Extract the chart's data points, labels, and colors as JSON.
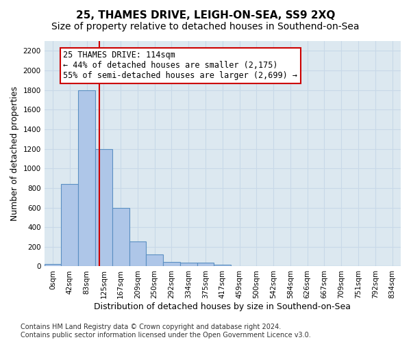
{
  "title": "25, THAMES DRIVE, LEIGH-ON-SEA, SS9 2XQ",
  "subtitle": "Size of property relative to detached houses in Southend-on-Sea",
  "xlabel": "Distribution of detached houses by size in Southend-on-Sea",
  "ylabel": "Number of detached properties",
  "bar_values": [
    25,
    840,
    1800,
    1200,
    595,
    255,
    120,
    42,
    40,
    35,
    18,
    0,
    0,
    0,
    0,
    0,
    0,
    0,
    0,
    0,
    0
  ],
  "bar_labels": [
    "0sqm",
    "42sqm",
    "83sqm",
    "125sqm",
    "167sqm",
    "209sqm",
    "250sqm",
    "292sqm",
    "334sqm",
    "375sqm",
    "417sqm",
    "459sqm",
    "500sqm",
    "542sqm",
    "584sqm",
    "626sqm",
    "667sqm",
    "709sqm",
    "751sqm",
    "792sqm",
    "834sqm"
  ],
  "bar_color": "#aec6e8",
  "bar_edge_color": "#5a8fc2",
  "bar_edge_width": 0.8,
  "vline_x": 2.73,
  "vline_color": "#cc0000",
  "annotation_text": "25 THAMES DRIVE: 114sqm\n← 44% of detached houses are smaller (2,175)\n55% of semi-detached houses are larger (2,699) →",
  "annotation_box_edge_color": "#cc0000",
  "annotation_box_face_color": "#ffffff",
  "ylim": [
    0,
    2300
  ],
  "yticks": [
    0,
    200,
    400,
    600,
    800,
    1000,
    1200,
    1400,
    1600,
    1800,
    2000,
    2200
  ],
  "grid_color": "#c8d8e8",
  "background_color": "#dce8f0",
  "footnote": "Contains HM Land Registry data © Crown copyright and database right 2024.\nContains public sector information licensed under the Open Government Licence v3.0.",
  "title_fontsize": 11,
  "subtitle_fontsize": 10,
  "xlabel_fontsize": 9,
  "ylabel_fontsize": 9,
  "tick_fontsize": 7.5,
  "annot_fontsize": 8.5,
  "footnote_fontsize": 7
}
